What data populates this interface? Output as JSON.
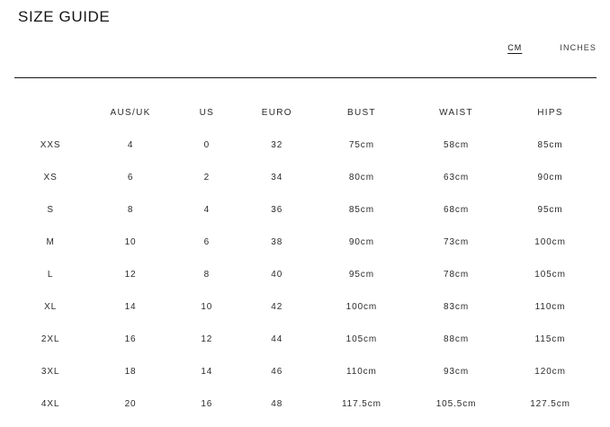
{
  "page": {
    "title": "SIZE GUIDE"
  },
  "unit_toggle": {
    "active": "CM",
    "options": [
      {
        "id": "cm",
        "label": "CM"
      },
      {
        "id": "inches",
        "label": "INCHES"
      }
    ]
  },
  "table": {
    "columns": [
      "",
      "AUS/UK",
      "US",
      "EURO",
      "BUST",
      "WAIST",
      "HIPS"
    ],
    "rows": [
      {
        "size": "XXS",
        "aus_uk": "4",
        "us": "0",
        "euro": "32",
        "bust": "75cm",
        "waist": "58cm",
        "hips": "85cm"
      },
      {
        "size": "XS",
        "aus_uk": "6",
        "us": "2",
        "euro": "34",
        "bust": "80cm",
        "waist": "63cm",
        "hips": "90cm"
      },
      {
        "size": "S",
        "aus_uk": "8",
        "us": "4",
        "euro": "36",
        "bust": "85cm",
        "waist": "68cm",
        "hips": "95cm"
      },
      {
        "size": "M",
        "aus_uk": "10",
        "us": "6",
        "euro": "38",
        "bust": "90cm",
        "waist": "73cm",
        "hips": "100cm"
      },
      {
        "size": "L",
        "aus_uk": "12",
        "us": "8",
        "euro": "40",
        "bust": "95cm",
        "waist": "78cm",
        "hips": "105cm"
      },
      {
        "size": "XL",
        "aus_uk": "14",
        "us": "10",
        "euro": "42",
        "bust": "100cm",
        "waist": "83cm",
        "hips": "110cm"
      },
      {
        "size": "2XL",
        "aus_uk": "16",
        "us": "12",
        "euro": "44",
        "bust": "105cm",
        "waist": "88cm",
        "hips": "115cm"
      },
      {
        "size": "3XL",
        "aus_uk": "18",
        "us": "14",
        "euro": "46",
        "bust": "110cm",
        "waist": "93cm",
        "hips": "120cm"
      },
      {
        "size": "4XL",
        "aus_uk": "20",
        "us": "16",
        "euro": "48",
        "bust": "117.5cm",
        "waist": "105.5cm",
        "hips": "127.5cm"
      }
    ]
  }
}
